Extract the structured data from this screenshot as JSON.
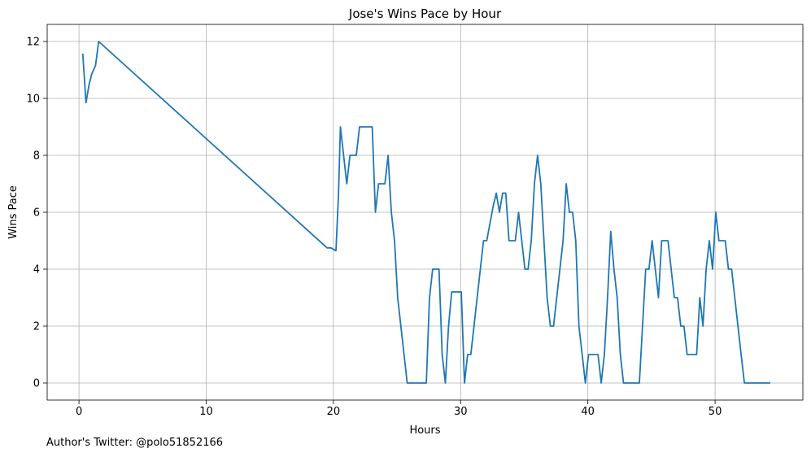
{
  "chart_data": {
    "type": "line",
    "title": "Jose's Wins Pace by Hour",
    "xlabel": "Hours",
    "ylabel": "Wins Pace",
    "xlim": [
      -2.5,
      56.9
    ],
    "ylim": [
      -0.6,
      12.6
    ],
    "xticks": [
      0,
      10,
      20,
      30,
      40,
      50
    ],
    "yticks": [
      0,
      2,
      4,
      6,
      8,
      10,
      12
    ],
    "grid": true,
    "series": [
      {
        "color": "#1f77b4",
        "x": [
          0.3,
          0.55,
          0.8,
          1.0,
          1.3,
          1.55,
          19.5,
          19.8,
          20.2,
          20.4,
          20.55,
          20.8,
          21.05,
          21.3,
          21.55,
          21.8,
          22.05,
          22.3,
          22.55,
          22.8,
          23.05,
          23.3,
          23.55,
          23.8,
          24.05,
          24.3,
          24.55,
          24.8,
          25.05,
          25.3,
          25.55,
          25.8,
          26.05,
          26.3,
          27.3,
          27.55,
          27.8,
          28.05,
          28.3,
          28.55,
          28.8,
          29.05,
          29.3,
          29.55,
          29.8,
          30.05,
          30.3,
          30.55,
          30.8,
          31.05,
          31.3,
          31.55,
          31.8,
          32.05,
          32.3,
          32.55,
          32.8,
          33.05,
          33.3,
          33.55,
          33.8,
          34.05,
          34.3,
          34.55,
          34.8,
          35.05,
          35.3,
          35.55,
          35.8,
          36.05,
          36.3,
          36.55,
          36.8,
          37.05,
          37.3,
          37.55,
          37.8,
          38.05,
          38.3,
          38.55,
          38.8,
          39.05,
          39.3,
          39.55,
          39.8,
          40.05,
          40.3,
          40.55,
          40.8,
          41.05,
          41.3,
          41.55,
          41.8,
          42.05,
          42.3,
          42.55,
          42.8,
          43.05,
          43.3,
          43.55,
          43.8,
          44.05,
          44.3,
          44.55,
          44.8,
          45.05,
          45.3,
          45.55,
          45.8,
          46.05,
          46.3,
          46.55,
          46.8,
          47.05,
          47.3,
          47.55,
          47.8,
          48.05,
          48.3,
          48.55,
          48.8,
          49.05,
          49.3,
          49.55,
          49.8,
          50.05,
          50.3,
          50.55,
          50.8,
          51.05,
          51.3,
          51.55,
          51.8,
          52.05,
          52.3,
          52.55,
          52.8,
          53.05,
          53.3,
          54.3
        ],
        "y": [
          11.55,
          9.85,
          10.5,
          10.85,
          11.15,
          12.0,
          4.75,
          4.75,
          4.65,
          6.6,
          9.0,
          8.0,
          7.0,
          8.0,
          8.0,
          8.0,
          9.0,
          9.0,
          9.0,
          9.0,
          9.0,
          6.0,
          7.0,
          7.0,
          7.0,
          8.0,
          6.0,
          5.0,
          3.0,
          2.0,
          1.0,
          0.0,
          0.0,
          0.0,
          0.0,
          3.0,
          4.0,
          4.0,
          4.0,
          1.0,
          0.0,
          2.0,
          3.2,
          3.2,
          3.2,
          3.2,
          0.0,
          1.0,
          1.0,
          2.0,
          3.0,
          4.0,
          5.0,
          5.0,
          5.6,
          6.2,
          6.67,
          6.0,
          6.67,
          6.67,
          5.0,
          5.0,
          5.0,
          6.0,
          5.0,
          4.0,
          4.0,
          5.0,
          7.0,
          8.0,
          7.0,
          5.0,
          3.0,
          2.0,
          2.0,
          3.0,
          4.0,
          5.0,
          7.0,
          6.0,
          6.0,
          5.0,
          2.0,
          1.0,
          0.0,
          1.0,
          1.0,
          1.0,
          1.0,
          0.0,
          1.0,
          3.0,
          5.33,
          4.0,
          3.0,
          1.0,
          0.0,
          0.0,
          0.0,
          0.0,
          0.0,
          0.0,
          2.0,
          4.0,
          4.0,
          5.0,
          4.0,
          3.0,
          5.0,
          5.0,
          5.0,
          4.0,
          3.0,
          3.0,
          2.0,
          2.0,
          1.0,
          1.0,
          1.0,
          1.0,
          3.0,
          2.0,
          4.0,
          5.0,
          4.0,
          6.0,
          5.0,
          5.0,
          5.0,
          4.0,
          4.0,
          3.0,
          2.0,
          1.0,
          0.0,
          0.0,
          0.0,
          0.0,
          0.0,
          0.0
        ]
      }
    ]
  },
  "credit": "Author's Twitter: @polo51852166"
}
